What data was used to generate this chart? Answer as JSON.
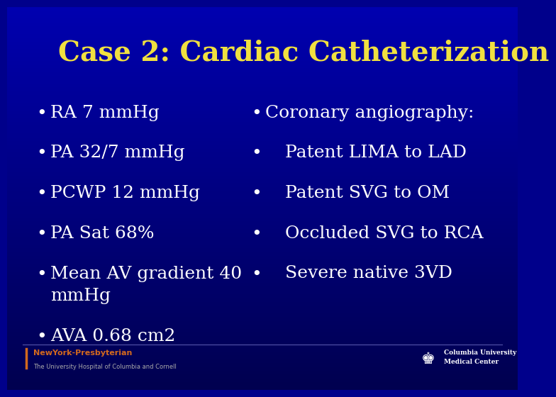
{
  "title": "Case 2: Cardiac Catheterization",
  "title_color": "#f0e040",
  "title_fontsize": 28,
  "bg_color": "#00008B",
  "bullet_color": "#FFFFFF",
  "bullet_fontsize": 18,
  "left_bullets": [
    "RA 7 mmHg",
    "PA 32/7 mmHg",
    "PCWP 12 mmHg",
    "PA Sat 68%",
    "Mean AV gradient 40\nmmHg",
    "AVA 0.68 cm2"
  ],
  "right_bullets": [
    "Coronary angiography:",
    "    Patent LIMA to LAD",
    "    Patent SVG to OM",
    "    Occluded SVG to RCA",
    "    Severe native 3VD"
  ],
  "footer_left_name": "NewYork-Presbyterian",
  "footer_left_sub": "The University Hospital of Columbia and Cornell",
  "footer_right_name": "Columbia University\nMedical Center",
  "footer_name_color": "#D2691E",
  "footer_sub_color": "#AAAAAA",
  "footer_right_color": "#FFFFFF"
}
